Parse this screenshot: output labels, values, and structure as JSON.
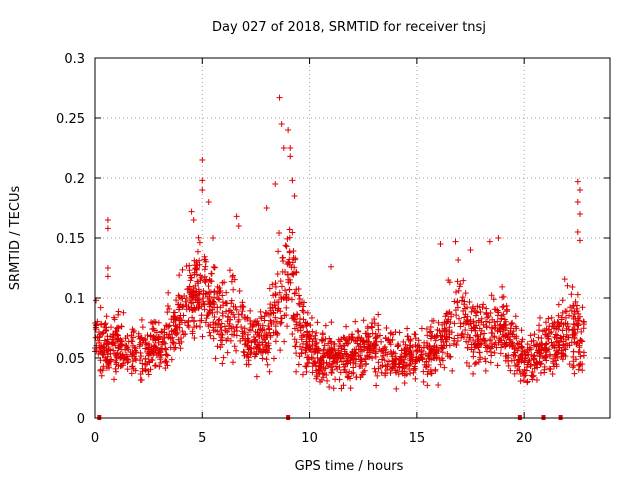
{
  "chart_data": {
    "type": "scatter",
    "title": "Day 027 of 2018, SRMTID for receiver tnsj",
    "xlabel": "GPS time / hours",
    "ylabel": "SRMTID / TECUs",
    "xlim": [
      0,
      24
    ],
    "ylim": [
      0,
      0.3
    ],
    "xticks": [
      0,
      5,
      10,
      15,
      20
    ],
    "xtick_labels": [
      "0",
      "5",
      "10",
      "15",
      "20"
    ],
    "yticks": [
      0,
      0.05,
      0.1,
      0.15,
      0.2,
      0.25,
      0.3
    ],
    "ytick_labels": [
      "0",
      "0.05",
      "0.1",
      "0.15",
      "0.2",
      "0.25",
      "0.3"
    ],
    "grid": true,
    "marker": "+",
    "color": "#e00000",
    "baseline_markers_x": [
      0.2,
      9.0,
      19.8,
      20.9,
      21.7
    ],
    "envelope": {
      "x": [
        0,
        0.5,
        1,
        1.5,
        2,
        2.5,
        3,
        3.5,
        4,
        4.5,
        5,
        5.5,
        6,
        6.5,
        7,
        7.5,
        8,
        8.5,
        9,
        9.5,
        10,
        10.5,
        11,
        11.5,
        12,
        12.5,
        13,
        13.5,
        14,
        14.5,
        15,
        15.5,
        16,
        16.5,
        17,
        17.5,
        18,
        18.5,
        19,
        19.5,
        20,
        20.5,
        21,
        21.5,
        22,
        22.5,
        22.8
      ],
      "y": [
        0.065,
        0.062,
        0.06,
        0.058,
        0.055,
        0.055,
        0.06,
        0.07,
        0.085,
        0.1,
        0.11,
        0.09,
        0.08,
        0.085,
        0.07,
        0.062,
        0.065,
        0.1,
        0.13,
        0.08,
        0.06,
        0.05,
        0.05,
        0.05,
        0.055,
        0.055,
        0.06,
        0.055,
        0.05,
        0.05,
        0.055,
        0.055,
        0.06,
        0.075,
        0.085,
        0.075,
        0.07,
        0.07,
        0.075,
        0.06,
        0.05,
        0.05,
        0.06,
        0.065,
        0.08,
        0.07,
        0.065
      ],
      "spread": [
        0.018,
        0.02,
        0.02,
        0.018,
        0.018,
        0.02,
        0.02,
        0.022,
        0.025,
        0.03,
        0.035,
        0.03,
        0.03,
        0.03,
        0.022,
        0.02,
        0.022,
        0.035,
        0.05,
        0.03,
        0.02,
        0.02,
        0.018,
        0.018,
        0.02,
        0.02,
        0.02,
        0.02,
        0.018,
        0.018,
        0.018,
        0.02,
        0.02,
        0.028,
        0.032,
        0.028,
        0.025,
        0.025,
        0.025,
        0.02,
        0.018,
        0.018,
        0.02,
        0.022,
        0.03,
        0.03,
        0.025
      ]
    },
    "notable_points": [
      {
        "x": 0.6,
        "y": 0.165
      },
      {
        "x": 0.6,
        "y": 0.158
      },
      {
        "x": 0.6,
        "y": 0.125
      },
      {
        "x": 0.6,
        "y": 0.118
      },
      {
        "x": 0.05,
        "y": 0.098
      },
      {
        "x": 4.5,
        "y": 0.172
      },
      {
        "x": 4.6,
        "y": 0.165
      },
      {
        "x": 5.0,
        "y": 0.215
      },
      {
        "x": 5.0,
        "y": 0.198
      },
      {
        "x": 5.0,
        "y": 0.19
      },
      {
        "x": 5.3,
        "y": 0.18
      },
      {
        "x": 5.5,
        "y": 0.15
      },
      {
        "x": 6.6,
        "y": 0.168
      },
      {
        "x": 6.7,
        "y": 0.16
      },
      {
        "x": 8.0,
        "y": 0.175
      },
      {
        "x": 8.4,
        "y": 0.195
      },
      {
        "x": 8.6,
        "y": 0.267
      },
      {
        "x": 8.7,
        "y": 0.245
      },
      {
        "x": 8.8,
        "y": 0.225
      },
      {
        "x": 9.0,
        "y": 0.24
      },
      {
        "x": 9.1,
        "y": 0.225
      },
      {
        "x": 9.1,
        "y": 0.218
      },
      {
        "x": 9.2,
        "y": 0.198
      },
      {
        "x": 9.3,
        "y": 0.185
      },
      {
        "x": 11.0,
        "y": 0.126
      },
      {
        "x": 16.1,
        "y": 0.145
      },
      {
        "x": 16.8,
        "y": 0.147
      },
      {
        "x": 17.5,
        "y": 0.14
      },
      {
        "x": 18.4,
        "y": 0.147
      },
      {
        "x": 18.8,
        "y": 0.15
      },
      {
        "x": 22.5,
        "y": 0.197
      },
      {
        "x": 22.6,
        "y": 0.19
      },
      {
        "x": 22.5,
        "y": 0.18
      },
      {
        "x": 22.6,
        "y": 0.17
      },
      {
        "x": 22.5,
        "y": 0.155
      },
      {
        "x": 22.6,
        "y": 0.148
      }
    ]
  }
}
